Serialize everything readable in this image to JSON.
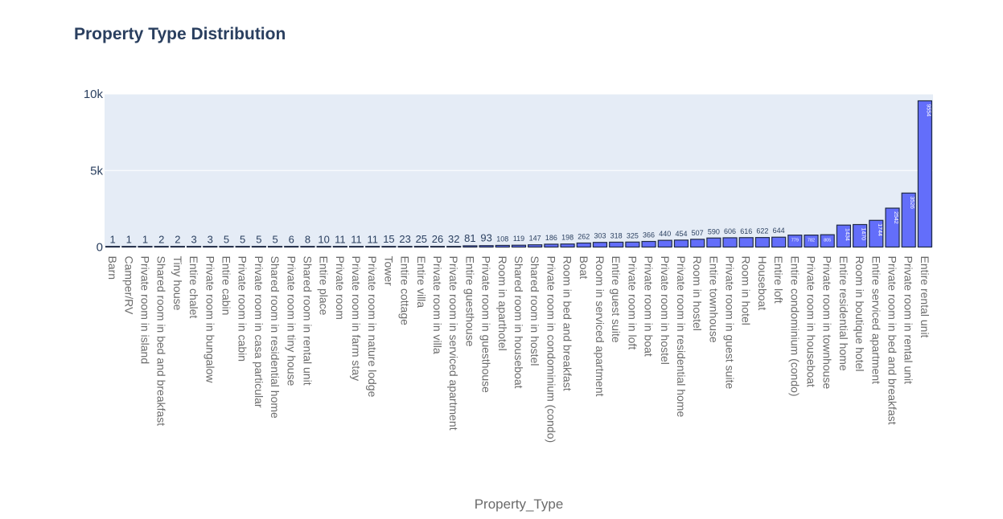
{
  "chart_data": {
    "type": "bar",
    "title": "Property Type Distribution",
    "xlabel": "Property_Type",
    "ylabel": "",
    "ylim": [
      0,
      10000
    ],
    "yticks": [
      {
        "value": 0,
        "label": "0"
      },
      {
        "value": 5000,
        "label": "5k"
      },
      {
        "value": 10000,
        "label": "10k"
      }
    ],
    "grid": true,
    "colors": {
      "bar_fill": "#636efa",
      "bar_outline": "#1f2a44",
      "plot_bg": "#e5ecf6",
      "gridline": "#ffffff",
      "title": "#2a3f5f"
    },
    "categories": [
      "Barn",
      "Camper/RV",
      "Private room in island",
      "Shared room in bed and breakfast",
      "Tiny house",
      "Entire chalet",
      "Private room in bungalow",
      "Entire cabin",
      "Private room in cabin",
      "Private room in casa particular",
      "Shared room in residential home",
      "Private room in tiny house",
      "Shared room in rental unit",
      "Entire place",
      "Private room",
      "Private room in farm stay",
      "Private room in nature lodge",
      "Tower",
      "Entire cottage",
      "Entire villa",
      "Private room in villa",
      "Private room in serviced apartment",
      "Entire guesthouse",
      "Private room in guesthouse",
      "Room in aparthotel",
      "Shared room in houseboat",
      "Shared room in hostel",
      "Private room in condominium (condo)",
      "Room in bed and breakfast",
      "Boat",
      "Room in serviced apartment",
      "Entire guest suite",
      "Private room in loft",
      "Private room in boat",
      "Private room in hostel",
      "Private room in residential home",
      "Room in hostel",
      "Entire townhouse",
      "Private room in guest suite",
      "Room in hotel",
      "Houseboat",
      "Entire loft",
      "Entire condominium (condo)",
      "Private room in houseboat",
      "Private room in townhouse",
      "Entire residential home",
      "Room in boutique hotel",
      "Entire serviced apartment",
      "Private room in bed and breakfast",
      "Private room in rental unit",
      "Entire rental unit"
    ],
    "values": [
      1,
      1,
      1,
      2,
      2,
      3,
      3,
      5,
      5,
      5,
      5,
      6,
      8,
      10,
      11,
      11,
      11,
      15,
      23,
      25,
      26,
      32,
      81,
      93,
      108,
      119,
      147,
      186,
      198,
      262,
      303,
      318,
      325,
      366,
      440,
      454,
      507,
      590,
      606,
      616,
      622,
      644,
      779,
      782,
      805,
      1434,
      1470,
      1744,
      2542,
      3526,
      9554
    ]
  }
}
